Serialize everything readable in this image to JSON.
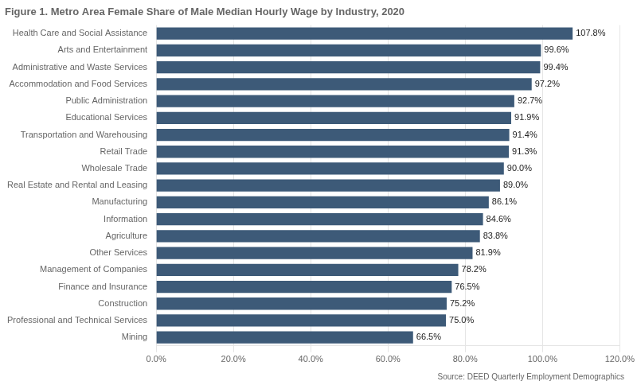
{
  "chart_data": {
    "type": "bar",
    "orientation": "horizontal",
    "title": "Figure 1. Metro Area Female Share of Male Median Hourly Wage by Industry, 2020",
    "source": "Source: DEED Quarterly Employment Demographics",
    "categories": [
      "Health Care and Social Assistance",
      "Arts and Entertainment",
      "Administrative and Waste Services",
      "Accommodation and Food Services",
      "Public Administration",
      "Educational Services",
      "Transportation and Warehousing",
      "Retail Trade",
      "Wholesale Trade",
      "Real Estate and Rental and Leasing",
      "Manufacturing",
      "Information",
      "Agriculture",
      "Other Services",
      "Management of Companies",
      "Finance and Insurance",
      "Construction",
      "Professional and Technical Services",
      "Mining"
    ],
    "values": [
      107.8,
      99.6,
      99.4,
      97.2,
      92.7,
      91.9,
      91.4,
      91.3,
      90.0,
      89.0,
      86.1,
      84.6,
      83.8,
      81.9,
      78.2,
      76.5,
      75.2,
      75.0,
      66.5
    ],
    "value_labels": [
      "107.8%",
      "99.6%",
      "99.4%",
      "97.2%",
      "92.7%",
      "91.9%",
      "91.4%",
      "91.3%",
      "90.0%",
      "89.0%",
      "86.1%",
      "84.6%",
      "83.8%",
      "81.9%",
      "78.2%",
      "76.5%",
      "75.2%",
      "75.0%",
      "66.5%"
    ],
    "data_labels": true,
    "color": "#3d5a78",
    "xlim": [
      0,
      120
    ],
    "xticks": [
      {
        "value": 0,
        "label": "0.0%"
      },
      {
        "value": 20,
        "label": "20.0%"
      },
      {
        "value": 40,
        "label": "40.0%"
      },
      {
        "value": 60,
        "label": "60.0%"
      },
      {
        "value": 80,
        "label": "80.0%"
      },
      {
        "value": 100,
        "label": "100.0%"
      },
      {
        "value": 120,
        "label": "120.0%"
      }
    ],
    "grid": true
  }
}
